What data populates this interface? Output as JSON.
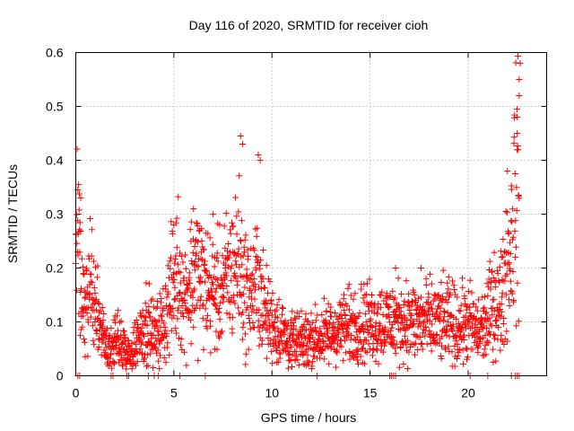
{
  "chart_data": {
    "type": "scatter",
    "title": "Day 116 of 2020, SRMTID for receiver cioh",
    "xlabel": "GPS time / hours",
    "ylabel": "SRMTID / TECUs",
    "xlim": [
      0,
      24
    ],
    "ylim": [
      0,
      0.6
    ],
    "x_ticks": [
      0,
      5,
      10,
      15,
      20
    ],
    "x_tick_labels": [
      "0",
      "5",
      "10",
      "15",
      "20"
    ],
    "y_ticks": [
      0,
      0.1,
      0.2,
      0.3,
      0.4,
      0.5,
      0.6
    ],
    "y_tick_labels": [
      "0",
      "0.1",
      "0.2",
      "0.3",
      "0.4",
      "0.5",
      "0.6"
    ],
    "grid": true,
    "marker": "plus",
    "series": [
      {
        "name": "SRMTID",
        "color": "#ff0000",
        "profile": [
          [
            0.0,
            0.27
          ],
          [
            0.1,
            0.3
          ],
          [
            0.3,
            0.15
          ],
          [
            0.6,
            0.13
          ],
          [
            0.8,
            0.18
          ],
          [
            1.0,
            0.12
          ],
          [
            1.3,
            0.08
          ],
          [
            1.6,
            0.05
          ],
          [
            1.9,
            0.05
          ],
          [
            2.2,
            0.07
          ],
          [
            2.6,
            0.04
          ],
          [
            2.9,
            0.04
          ],
          [
            3.2,
            0.07
          ],
          [
            3.6,
            0.1
          ],
          [
            4.0,
            0.07
          ],
          [
            4.5,
            0.1
          ],
          [
            4.9,
            0.16
          ],
          [
            5.2,
            0.2
          ],
          [
            5.5,
            0.14
          ],
          [
            5.8,
            0.17
          ],
          [
            6.1,
            0.2
          ],
          [
            6.4,
            0.18
          ],
          [
            6.8,
            0.16
          ],
          [
            7.2,
            0.15
          ],
          [
            7.6,
            0.17
          ],
          [
            8.0,
            0.2
          ],
          [
            8.3,
            0.22
          ],
          [
            8.6,
            0.16
          ],
          [
            9.0,
            0.15
          ],
          [
            9.3,
            0.18
          ],
          [
            9.6,
            0.12
          ],
          [
            10.0,
            0.1
          ],
          [
            10.5,
            0.08
          ],
          [
            11.0,
            0.06
          ],
          [
            11.5,
            0.06
          ],
          [
            12.0,
            0.07
          ],
          [
            12.5,
            0.07
          ],
          [
            13.0,
            0.08
          ],
          [
            13.5,
            0.09
          ],
          [
            14.0,
            0.09
          ],
          [
            14.5,
            0.1
          ],
          [
            15.0,
            0.1
          ],
          [
            15.5,
            0.1
          ],
          [
            16.0,
            0.1
          ],
          [
            16.5,
            0.1
          ],
          [
            17.0,
            0.1
          ],
          [
            17.5,
            0.1
          ],
          [
            18.0,
            0.1
          ],
          [
            18.5,
            0.1
          ],
          [
            19.0,
            0.1
          ],
          [
            19.5,
            0.09
          ],
          [
            20.0,
            0.1
          ],
          [
            20.5,
            0.08
          ],
          [
            21.0,
            0.1
          ],
          [
            21.3,
            0.15
          ],
          [
            21.6,
            0.12
          ],
          [
            21.9,
            0.2
          ],
          [
            22.2,
            0.25
          ],
          [
            22.4,
            0.35
          ],
          [
            22.6,
            0.32
          ]
        ],
        "spikes": [
          [
            0.1,
            0.345
          ],
          [
            0.25,
            0.33
          ],
          [
            5.0,
            0.28
          ],
          [
            6.0,
            0.31
          ],
          [
            7.0,
            0.3
          ],
          [
            8.4,
            0.445
          ],
          [
            8.5,
            0.43
          ],
          [
            9.3,
            0.41
          ],
          [
            9.4,
            0.4
          ],
          [
            16.3,
            0.2
          ],
          [
            17.6,
            0.2
          ],
          [
            21.7,
            0.22
          ],
          [
            22.0,
            0.38
          ],
          [
            22.5,
            0.45
          ],
          [
            22.5,
            0.48
          ],
          [
            22.6,
            0.52
          ],
          [
            22.6,
            0.55
          ],
          [
            22.65,
            0.58
          ]
        ],
        "zero_points": [
          0.1,
          0.2,
          1.8,
          1.9,
          2.6,
          2.7,
          3.7,
          4.0,
          4.2,
          5.3,
          6.6,
          12.3,
          16.0,
          16.1,
          16.2,
          16.3,
          20.1,
          21.0,
          22.2,
          22.4,
          22.5,
          22.6
        ]
      }
    ]
  }
}
